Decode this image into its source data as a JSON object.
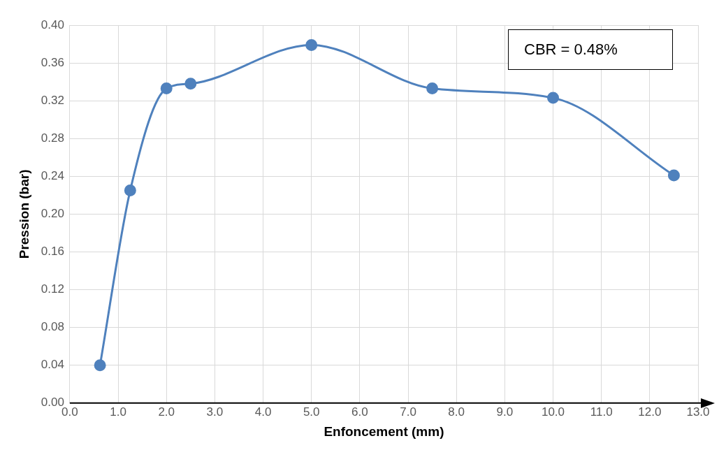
{
  "chart_data": {
    "type": "line",
    "xlabel": "Enfoncement (mm)",
    "ylabel": "Pression (bar)",
    "annotations": [
      "CBR = 0.48%"
    ],
    "series": [
      {
        "color": "#4f81bd",
        "x": [
          0.625,
          1.25,
          2.0,
          2.5,
          5.0,
          7.5,
          10.0,
          12.5
        ],
        "values": [
          0.04,
          0.225,
          0.333,
          0.338,
          0.379,
          0.333,
          0.323,
          0.241
        ]
      }
    ],
    "xlim": [
      0,
      13
    ],
    "ylim": [
      0,
      0.4
    ],
    "xticks": [
      {
        "value": 0,
        "label": "0.0"
      },
      {
        "value": 1,
        "label": "1.0"
      },
      {
        "value": 2,
        "label": "2.0"
      },
      {
        "value": 3,
        "label": "3.0"
      },
      {
        "value": 4,
        "label": "4.0"
      },
      {
        "value": 5,
        "label": "5.0"
      },
      {
        "value": 6,
        "label": "6.0"
      },
      {
        "value": 7,
        "label": "7.0"
      },
      {
        "value": 8,
        "label": "8.0"
      },
      {
        "value": 9,
        "label": "9.0"
      },
      {
        "value": 10,
        "label": "10.0"
      },
      {
        "value": 11,
        "label": "11.0"
      },
      {
        "value": 12,
        "label": "12.0"
      },
      {
        "value": 13,
        "label": "13.0"
      }
    ],
    "yticks": [
      {
        "value": 0,
        "label": "0.00"
      },
      {
        "value": 0.04,
        "label": "0.04"
      },
      {
        "value": 0.08,
        "label": "0.08"
      },
      {
        "value": 0.12,
        "label": "0.12"
      },
      {
        "value": 0.16,
        "label": "0.16"
      },
      {
        "value": 0.2,
        "label": "0.20"
      },
      {
        "value": 0.24,
        "label": "0.24"
      },
      {
        "value": 0.28,
        "label": "0.28"
      },
      {
        "value": 0.32,
        "label": "0.32"
      },
      {
        "value": 0.36,
        "label": "0.36"
      },
      {
        "value": 0.4,
        "label": "0.40"
      }
    ],
    "grid": true,
    "marker": "circle",
    "line_style": "solid",
    "legend": false
  }
}
